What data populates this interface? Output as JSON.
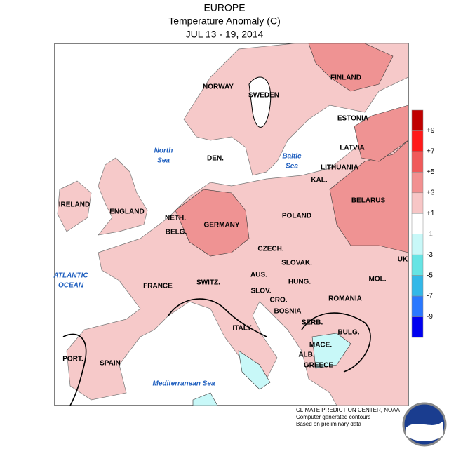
{
  "header": {
    "title": "EUROPE",
    "subtitle": "Temperature Anomaly (C)",
    "dates": "JUL 13 - 19, 2014"
  },
  "labels": {
    "countries": [
      "NORWAY",
      "SWEDEN",
      "FINLAND",
      "ESTONIA",
      "LATVIA",
      "LITHUANIA",
      "KAL.",
      "BELARUS",
      "DEN.",
      "IRELAND",
      "ENGLAND",
      "NETH.",
      "BELG.",
      "GERMANY",
      "POLAND",
      "CZECH.",
      "SLOVAK.",
      "AUS.",
      "SWITZ.",
      "FRANCE",
      "HUNG.",
      "SLOV.",
      "CRO.",
      "ROMANIA",
      "MOL.",
      "UK",
      "BOSNIA",
      "SERB.",
      "BULG.",
      "ITALY",
      "MACE.",
      "ALB.",
      "GREECE",
      "PORT.",
      "SPAIN"
    ],
    "seas": [
      {
        "lines": [
          "North",
          "Sea"
        ]
      },
      {
        "lines": [
          "Baltic",
          "Sea"
        ]
      },
      {
        "lines": [
          "ATLANTIC",
          "OCEAN"
        ]
      },
      {
        "lines": [
          "Mediterranean Sea"
        ]
      }
    ]
  },
  "legend": {
    "labels": [
      "+9",
      "+7",
      "+5",
      "+3",
      "+1",
      "-1",
      "-3",
      "-5",
      "-7",
      "-9"
    ],
    "colors": [
      "#c00000",
      "#ff1a1a",
      "#f05a5a",
      "#f29090",
      "#f7c6c6",
      "#ffffff",
      "#c8f8f8",
      "#66e4e4",
      "#33b8e8",
      "#2a78ff",
      "#0000f0"
    ]
  },
  "footer": {
    "lines": [
      "CLIMATE PREDICTION CENTER, NOAA",
      "Computer generated contours",
      "Based on preliminary data"
    ]
  }
}
